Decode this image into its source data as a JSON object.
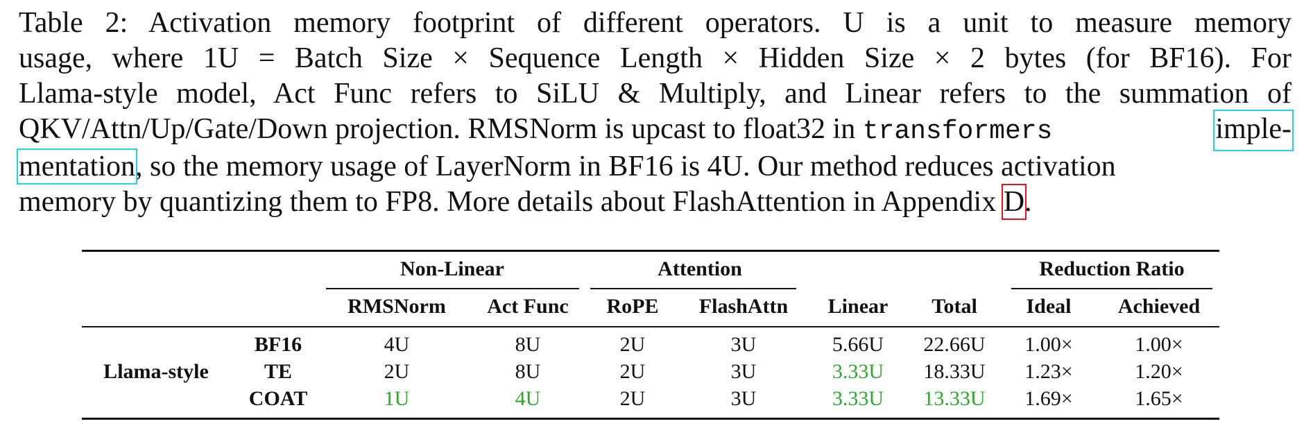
{
  "caption": {
    "line1": "Table 2:  Activation memory footprint of different operators.  U is a unit to measure memory",
    "line2": "usage,  where  1U  =  Batch Size × Sequence Length × Hidden Size × 2 bytes (for BF16).  For",
    "line3": "Llama-style model, Act Func refers to SiLU & Multiply, and Linear refers to the summation of",
    "line4a": "QKV/Attn/Up/Gate/Down projection.  RMSNorm is upcast to float32 in ",
    "line4_code": "transformers",
    "line4_link": "imple-",
    "line5_link": "mentation",
    "line5b": ", so the memory usage of LayerNorm in BF16 is 4U. Our method reduces activation",
    "line6a": "memory by quantizing them to FP8. More details about FlashAttention in Appendix ",
    "line6_ref": "D",
    "line6b": "."
  },
  "table": {
    "groups": {
      "nonlinear": "Non-Linear",
      "attention": "Attention",
      "reduction": "Reduction Ratio"
    },
    "columns": {
      "rmsnorm": "RMSNorm",
      "actfunc": "Act Func",
      "rope": "RoPE",
      "flashattn": "FlashAttn",
      "linear": "Linear",
      "total": "Total",
      "ideal": "Ideal",
      "achieved": "Achieved"
    },
    "row_group": "Llama-style",
    "rows": [
      {
        "method": "BF16",
        "rmsnorm": "4U",
        "actfunc": "8U",
        "rope": "2U",
        "flashattn": "3U",
        "linear": "5.66U",
        "total": "22.66U",
        "ideal": "1.00×",
        "achieved": "1.00×"
      },
      {
        "method": "TE",
        "rmsnorm": "2U",
        "actfunc": "8U",
        "rope": "2U",
        "flashattn": "3U",
        "linear": "3.33U",
        "total": "18.33U",
        "ideal": "1.23×",
        "achieved": "1.20×"
      },
      {
        "method": "COAT",
        "rmsnorm": "1U",
        "actfunc": "4U",
        "rope": "2U",
        "flashattn": "3U",
        "linear": "3.33U",
        "total": "13.33U",
        "ideal": "1.69×",
        "achieved": "1.65×"
      }
    ],
    "highlight_color": "#2ea82e"
  }
}
